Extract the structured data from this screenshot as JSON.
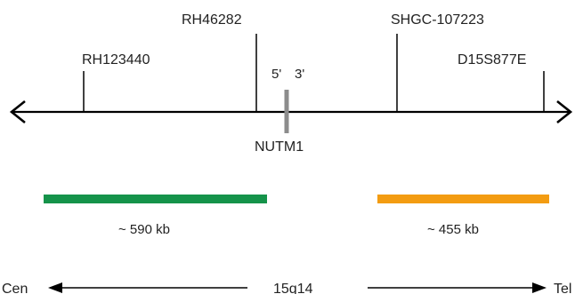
{
  "markers": [
    {
      "name": "RH123440"
    },
    {
      "name": "RH46282"
    },
    {
      "name": "SHGC-107223"
    },
    {
      "name": "D15S877E"
    }
  ],
  "gene": {
    "name": "NUTM1",
    "five_prime": "5'",
    "three_prime": "3'",
    "color": "#8c8c8c"
  },
  "probes": [
    {
      "size_label": "~ 590 kb",
      "color": "#15934a"
    },
    {
      "size_label": "~ 455 kb",
      "color": "#f39c12"
    }
  ],
  "orientation": {
    "left": "Cen",
    "center": "15q14",
    "right": "Tel"
  }
}
